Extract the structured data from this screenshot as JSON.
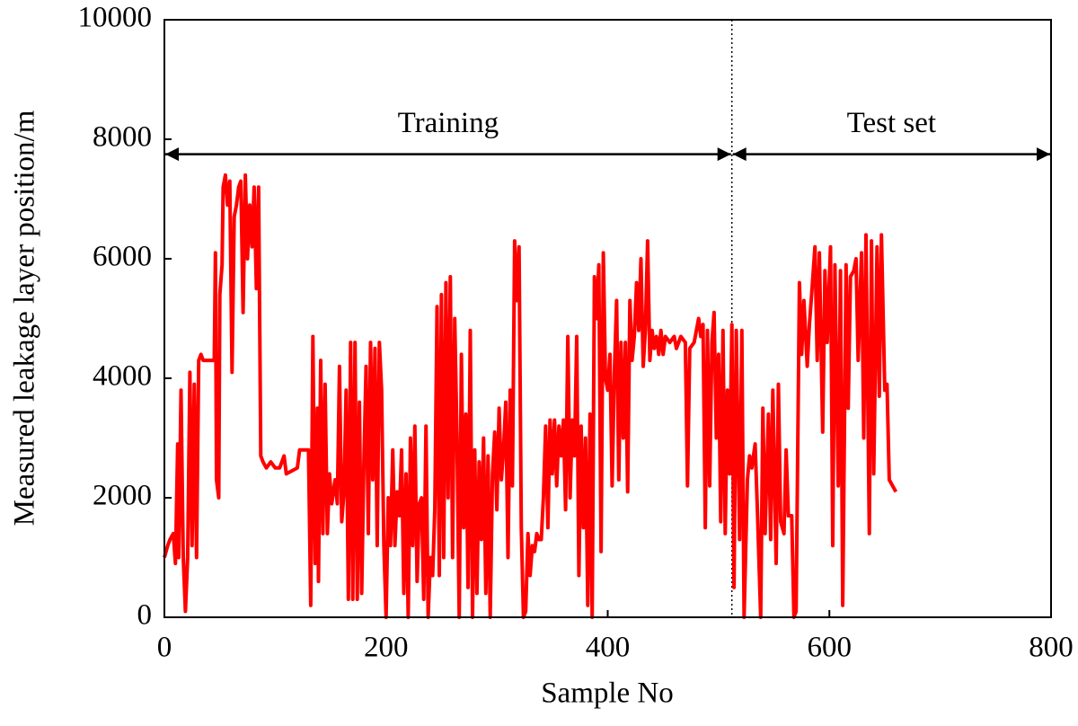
{
  "chart_data": {
    "type": "line",
    "x_label": "Sample No",
    "y_label": "Measured leakage layer position/m",
    "xlim": [
      0,
      800
    ],
    "xticks": [
      0,
      200,
      400,
      600,
      800
    ],
    "ylim": [
      0,
      10000
    ],
    "yticks": [
      0,
      2000,
      4000,
      6000,
      8000,
      10000
    ],
    "grid": false,
    "divider_x": 512,
    "annotations": [
      {
        "text": "Training",
        "x": [
          0,
          512
        ],
        "y": 7750
      },
      {
        "text": "Test set",
        "x": [
          512,
          800
        ],
        "y": 7750
      }
    ],
    "x": [
      0,
      3,
      5,
      8,
      10,
      12,
      13,
      15,
      17,
      19,
      21,
      23,
      25,
      27,
      29,
      31,
      33,
      35,
      45,
      46,
      47,
      49,
      50,
      52,
      53,
      55,
      57,
      59,
      61,
      63,
      65,
      67,
      69,
      71,
      73,
      75,
      77,
      79,
      81,
      83,
      85,
      87,
      89,
      92,
      96,
      100,
      104,
      108,
      110,
      120,
      122,
      130,
      132,
      134,
      136,
      138,
      139,
      141,
      143,
      145,
      147,
      149,
      151,
      154,
      156,
      158,
      160,
      162,
      164,
      166,
      168,
      170,
      172,
      174,
      176,
      178,
      180,
      182,
      184,
      186,
      188,
      190,
      192,
      194,
      196,
      198,
      200,
      202,
      204,
      206,
      208,
      210,
      212,
      214,
      216,
      218,
      220,
      222,
      224,
      226,
      228,
      230,
      232,
      234,
      236,
      238,
      240,
      242,
      244,
      246,
      248,
      250,
      252,
      254,
      256,
      258,
      260,
      262,
      264,
      266,
      268,
      270,
      272,
      274,
      276,
      278,
      280,
      282,
      284,
      286,
      288,
      290,
      292,
      294,
      296,
      298,
      300,
      302,
      304,
      306,
      308,
      310,
      312,
      314,
      316,
      318,
      320,
      322,
      324,
      326,
      328,
      330,
      332,
      334,
      336,
      338,
      340,
      342,
      344,
      346,
      348,
      350,
      352,
      354,
      356,
      358,
      360,
      362,
      364,
      366,
      368,
      370,
      372,
      374,
      376,
      378,
      380,
      382,
      384,
      386,
      388,
      390,
      392,
      394,
      396,
      398,
      400,
      402,
      404,
      406,
      408,
      410,
      412,
      414,
      416,
      418,
      420,
      422,
      424,
      426,
      428,
      430,
      432,
      434,
      436,
      438,
      440,
      442,
      444,
      446,
      448,
      450,
      452,
      456,
      460,
      462,
      466,
      470,
      472,
      474,
      478,
      482,
      484,
      486,
      488,
      490,
      492,
      494,
      496,
      498,
      500,
      502,
      504,
      506,
      508,
      510,
      512,
      514,
      516,
      519,
      521,
      523,
      526,
      528,
      530,
      533,
      535,
      538,
      540,
      542,
      545,
      547,
      549,
      552,
      554,
      556,
      559,
      561,
      563,
      566,
      568,
      570,
      573,
      575,
      577,
      580,
      582,
      584,
      587,
      589,
      591,
      594,
      596,
      598,
      601,
      603,
      605,
      608,
      610,
      612,
      615,
      617,
      619,
      622,
      624,
      626,
      629,
      631,
      633,
      636,
      638,
      640,
      643,
      645,
      647,
      650,
      652,
      654,
      657,
      660
    ],
    "series": [
      {
        "name": "Measured",
        "color": "#ff0000",
        "values": [
          1000,
          1200,
          1300,
          1400,
          900,
          2900,
          1000,
          3800,
          1000,
          100,
          1000,
          4100,
          1200,
          3900,
          1000,
          4300,
          4400,
          4300,
          4300,
          6100,
          2300,
          2000,
          5400,
          5900,
          7200,
          7400,
          6900,
          7300,
          4100,
          6700,
          6900,
          7200,
          7300,
          5100,
          7400,
          6000,
          6900,
          6200,
          7200,
          5500,
          7200,
          2700,
          2600,
          2500,
          2600,
          2500,
          2500,
          2700,
          2400,
          2500,
          2800,
          2800,
          200,
          4700,
          900,
          3500,
          600,
          4300,
          1400,
          3900,
          1400,
          2400,
          1900,
          2300,
          1900,
          4200,
          1600,
          2100,
          3800,
          300,
          4600,
          300,
          4600,
          300,
          3600,
          400,
          2600,
          4200,
          1400,
          4600,
          2300,
          4500,
          1200,
          4600,
          3800,
          1200,
          0,
          2000,
          1200,
          2800,
          1200,
          2100,
          1700,
          2800,
          400,
          2400,
          0,
          3000,
          1200,
          3200,
          600,
          1900,
          2000,
          300,
          3200,
          0,
          1000,
          700,
          1800,
          5200,
          700,
          5400,
          1000,
          5600,
          2000,
          5700,
          1000,
          5000,
          3000,
          0,
          4400,
          1500,
          3400,
          500,
          4800,
          0,
          2800,
          400,
          2600,
          1300,
          3000,
          400,
          2700,
          0,
          2400,
          3100,
          1800,
          3500,
          2300,
          2800,
          3600,
          1000,
          3800,
          2200,
          6300,
          5300,
          6200,
          1500,
          0,
          100,
          1400,
          700,
          1200,
          1100,
          1400,
          1300,
          1300,
          2000,
          3200,
          1500,
          3300,
          2400,
          3300,
          2200,
          3200,
          2700,
          3300,
          1800,
          4700,
          2000,
          3300,
          2700,
          4700,
          700,
          3200,
          1500,
          3000,
          200,
          3400,
          0,
          5700,
          5000,
          5900,
          1100,
          6100,
          4000,
          3800,
          4400,
          2200,
          4100,
          5300,
          2300,
          4600,
          3000,
          4600,
          2100,
          5300,
          4300,
          4700,
          5600,
          4800,
          6000,
          4200,
          4800,
          6300,
          4300,
          4800,
          4500,
          4700,
          4400,
          4800,
          4400,
          4700,
          4600,
          4700,
          4500,
          4700,
          4600,
          2200,
          4500,
          4600,
          5000,
          4700,
          4900,
          1500,
          4800,
          2200,
          4600,
          5100,
          3000,
          4400,
          1600,
          4800,
          1400,
          3800,
          2400,
          4900,
          500,
          4800,
          1300,
          4800,
          0,
          2300,
          2700,
          2500,
          2900,
          1800,
          0,
          3500,
          1400,
          3400,
          1300,
          3800,
          900,
          3900,
          1600,
          1400,
          2800,
          1700,
          1700,
          0,
          100,
          5600,
          4400,
          5300,
          4200,
          4900,
          5400,
          6200,
          4300,
          6100,
          3100,
          5800,
          4600,
          6200,
          1200,
          5900,
          2200,
          5800,
          200,
          5900,
          3500,
          5700,
          5800,
          6000,
          4300,
          6100,
          3000,
          6400,
          1400,
          6300,
          2400,
          6200,
          3700,
          6400,
          3800,
          3900,
          2300,
          2200,
          2100
        ]
      }
    ]
  }
}
